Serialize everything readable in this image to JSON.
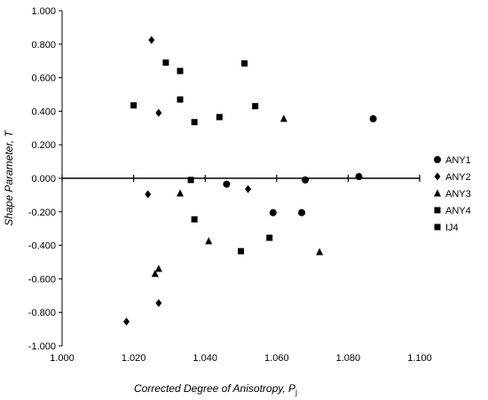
{
  "chart_data": {
    "type": "scatter",
    "xlabel": "Corrected Degree of Anisotropy, ",
    "xlabel_symbol": "P",
    "xlabel_subscript": "j",
    "ylabel": "Shape Parameter, ",
    "ylabel_symbol": "T",
    "xlim": [
      1.0,
      1.1
    ],
    "ylim": [
      -1.0,
      1.0
    ],
    "x_ticks": [
      "1.000",
      "1.020",
      "1.040",
      "1.060",
      "1.080",
      "1.100"
    ],
    "x_tick_values": [
      1.0,
      1.02,
      1.04,
      1.06,
      1.08,
      1.1
    ],
    "y_ticks": [
      "1.000",
      "0.800",
      "0.600",
      "0.400",
      "0.200",
      "0.000",
      "-0.200",
      "-0.400",
      "-0.600",
      "-0.800",
      "-1.000"
    ],
    "y_tick_values": [
      1.0,
      0.8,
      0.6,
      0.4,
      0.2,
      0.0,
      -0.2,
      -0.4,
      -0.6,
      -0.8,
      -1.0
    ],
    "grid": false,
    "legend_position": "right",
    "series": [
      {
        "name": "ANY1",
        "marker": "circle",
        "color": "#000000",
        "points": [
          {
            "x": 1.046,
            "y": -0.035
          },
          {
            "x": 1.059,
            "y": -0.205
          },
          {
            "x": 1.067,
            "y": -0.205
          },
          {
            "x": 1.068,
            "y": -0.01
          },
          {
            "x": 1.083,
            "y": 0.01
          },
          {
            "x": 1.087,
            "y": 0.355
          }
        ]
      },
      {
        "name": "ANY2",
        "marker": "diamond",
        "color": "#000000",
        "points": [
          {
            "x": 1.025,
            "y": 0.825
          },
          {
            "x": 1.027,
            "y": 0.39
          },
          {
            "x": 1.024,
            "y": -0.095
          },
          {
            "x": 1.052,
            "y": -0.065
          },
          {
            "x": 1.027,
            "y": -0.745
          },
          {
            "x": 1.018,
            "y": -0.855
          }
        ]
      },
      {
        "name": "ANY3",
        "marker": "triangle",
        "color": "#000000",
        "points": [
          {
            "x": 1.062,
            "y": 0.355
          },
          {
            "x": 1.033,
            "y": -0.09
          },
          {
            "x": 1.041,
            "y": -0.375
          },
          {
            "x": 1.072,
            "y": -0.44
          },
          {
            "x": 1.027,
            "y": -0.54
          },
          {
            "x": 1.026,
            "y": -0.57
          }
        ]
      },
      {
        "name": "ANY4",
        "marker": "square",
        "color": "#000000",
        "points": [
          {
            "x": 1.02,
            "y": 0.435
          },
          {
            "x": 1.029,
            "y": 0.69
          },
          {
            "x": 1.033,
            "y": 0.64
          },
          {
            "x": 1.033,
            "y": 0.47
          },
          {
            "x": 1.037,
            "y": 0.335
          },
          {
            "x": 1.044,
            "y": 0.365
          },
          {
            "x": 1.051,
            "y": 0.685
          },
          {
            "x": 1.054,
            "y": 0.43
          },
          {
            "x": 1.036,
            "y": -0.01
          },
          {
            "x": 1.037,
            "y": -0.245
          },
          {
            "x": 1.05,
            "y": -0.435
          },
          {
            "x": 1.058,
            "y": -0.355
          }
        ]
      },
      {
        "name": "IJ4",
        "marker": "square",
        "color": "#000000",
        "points": []
      }
    ]
  }
}
